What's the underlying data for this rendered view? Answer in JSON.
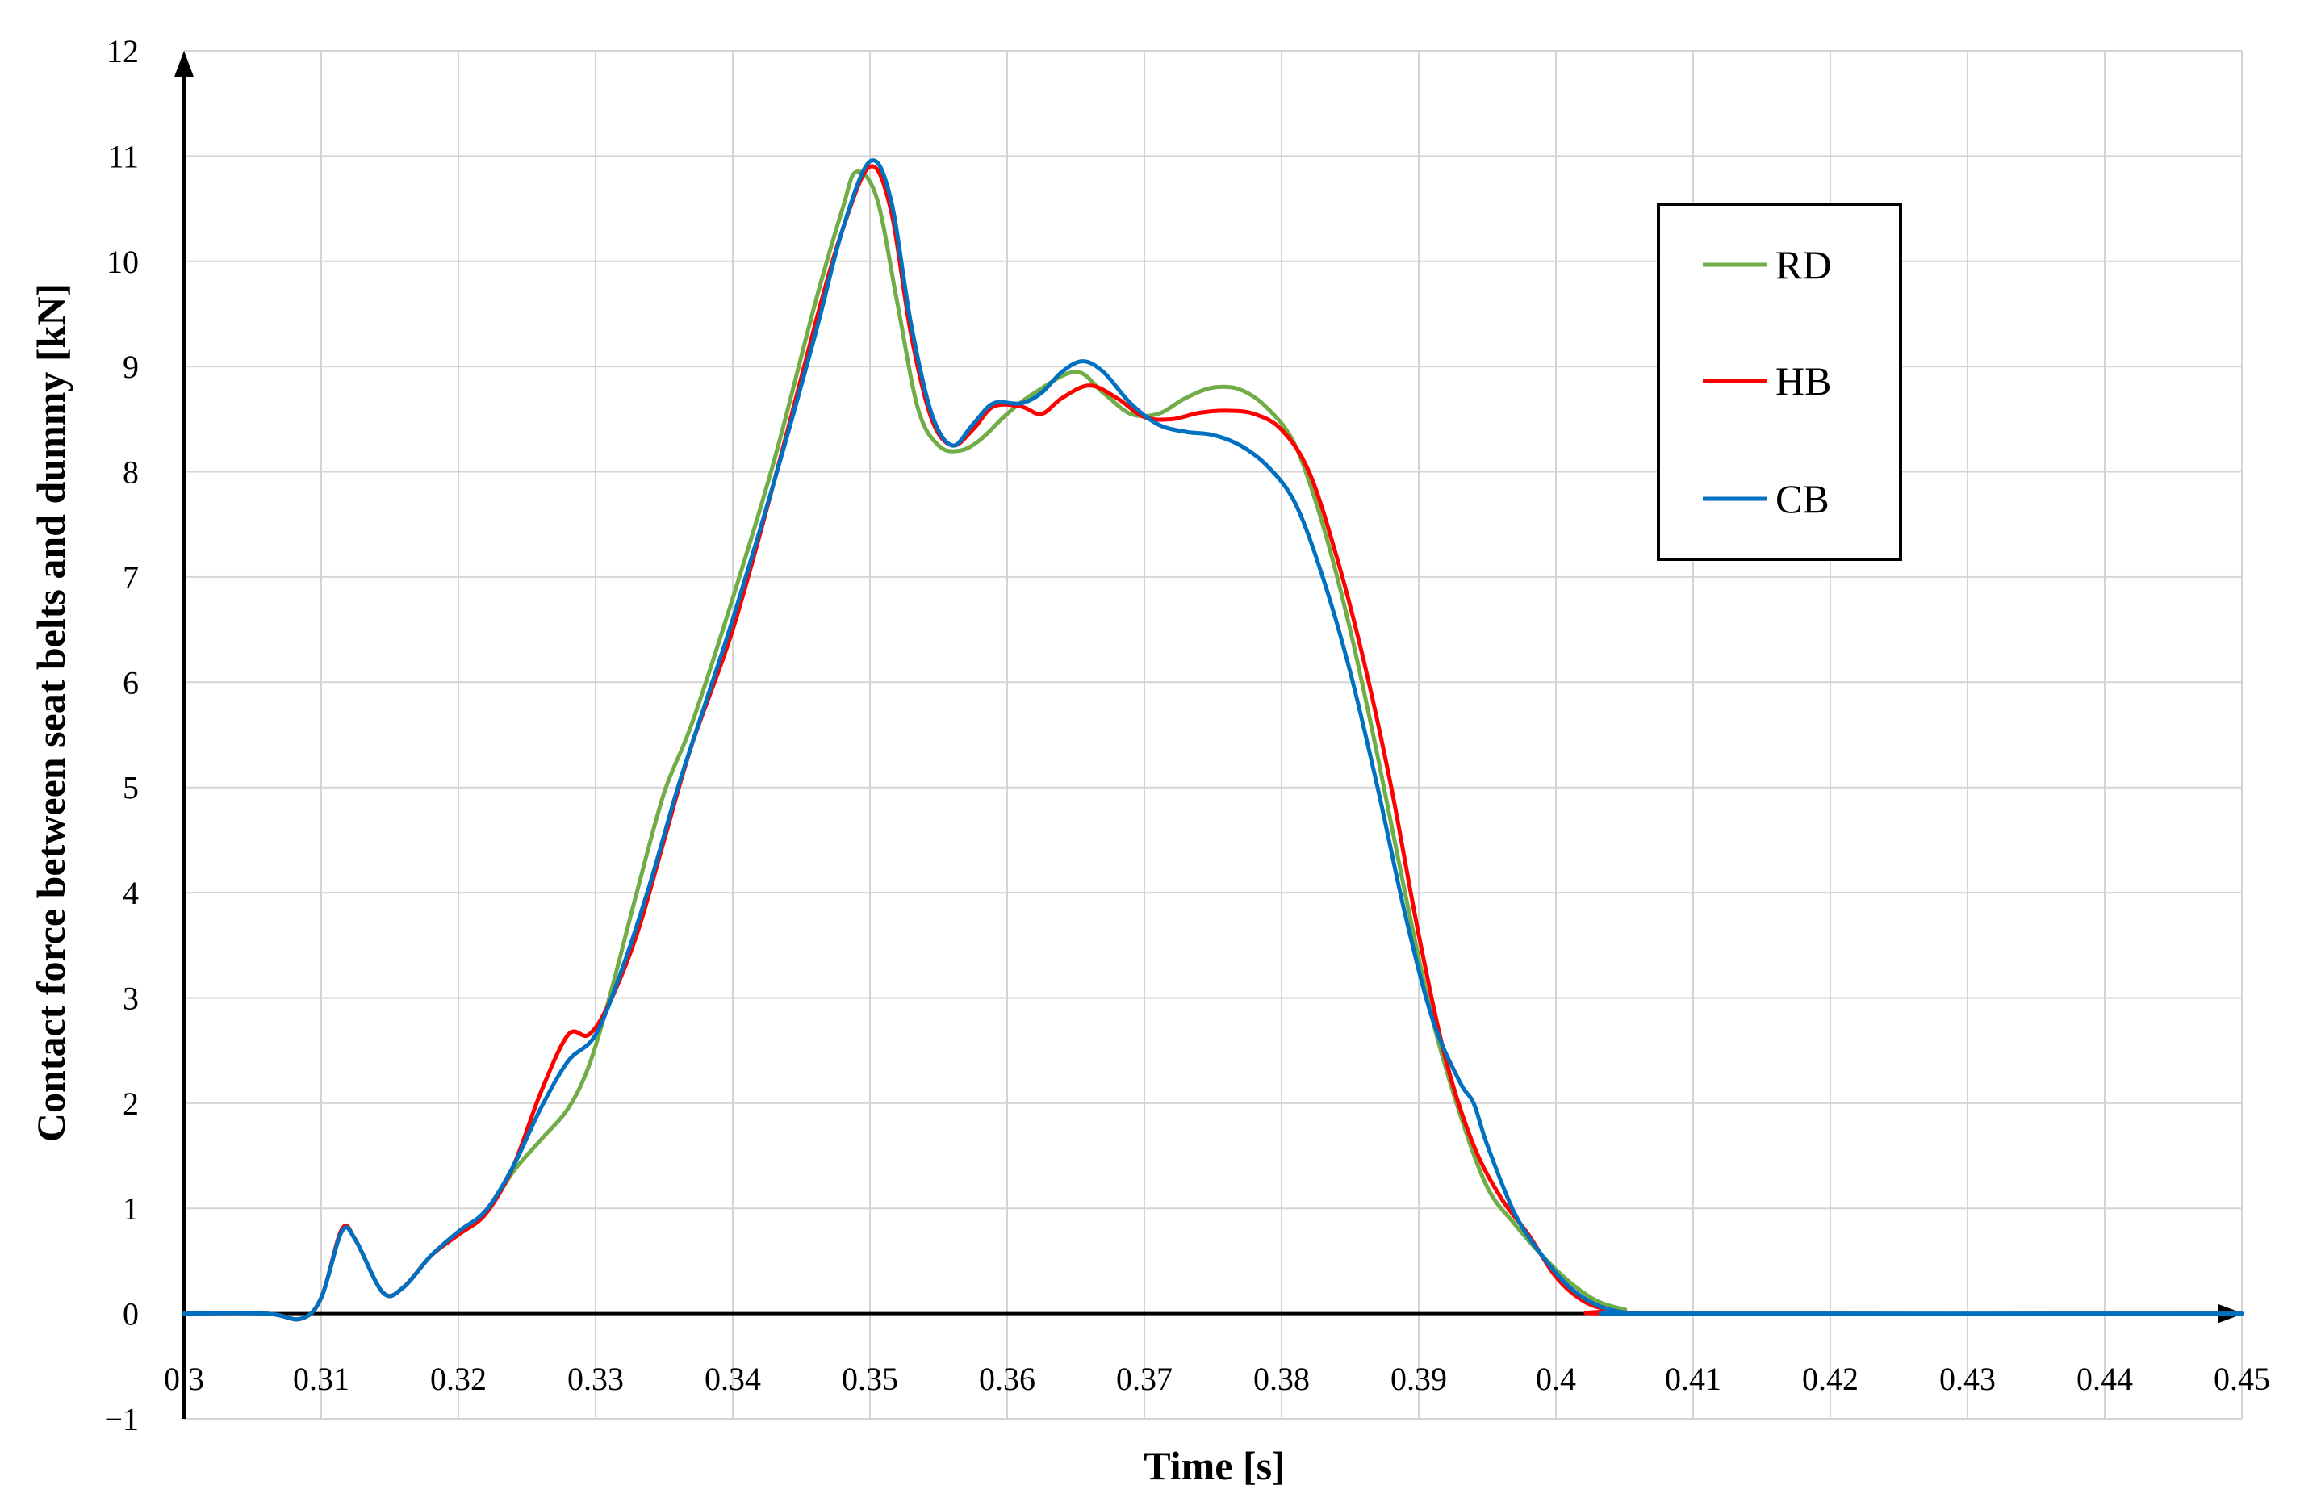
{
  "chart_data": {
    "type": "line",
    "title": "",
    "xlabel": "Time [s]",
    "ylabel": "Contact force between seat belts and dummy [kN]",
    "xlim": [
      0.3,
      0.45
    ],
    "ylim": [
      -1,
      12
    ],
    "x_ticks": [
      0.3,
      0.31,
      0.32,
      0.33,
      0.34,
      0.35,
      0.36,
      0.37,
      0.38,
      0.39,
      0.4,
      0.41,
      0.42,
      0.43,
      0.44,
      0.45
    ],
    "x_tick_labels": [
      "0.3",
      "0.31",
      "0.32",
      "0.33",
      "0.34",
      "0.35",
      "0.36",
      "0.37",
      "0.38",
      "0.39",
      "0.4",
      "0.41",
      "0.42",
      "0.43",
      "0.44",
      "0.45"
    ],
    "y_ticks": [
      -1,
      0,
      1,
      2,
      3,
      4,
      5,
      6,
      7,
      8,
      9,
      10,
      11,
      12
    ],
    "y_tick_labels": [
      "−1",
      "0",
      "1",
      "2",
      "3",
      "4",
      "5",
      "6",
      "7",
      "8",
      "9",
      "10",
      "11",
      "12"
    ],
    "grid": true,
    "legend_position": "top-right",
    "series": [
      {
        "name": "RD",
        "color": "#70ad47",
        "points": [
          [
            0.3,
            0.0
          ],
          [
            0.306,
            0.0
          ],
          [
            0.3085,
            -0.05
          ],
          [
            0.31,
            0.15
          ],
          [
            0.3115,
            0.78
          ],
          [
            0.3125,
            0.7
          ],
          [
            0.3145,
            0.2
          ],
          [
            0.316,
            0.25
          ],
          [
            0.318,
            0.55
          ],
          [
            0.32,
            0.75
          ],
          [
            0.322,
            0.95
          ],
          [
            0.324,
            1.35
          ],
          [
            0.326,
            1.65
          ],
          [
            0.328,
            1.95
          ],
          [
            0.3295,
            2.35
          ],
          [
            0.331,
            3.0
          ],
          [
            0.333,
            4.0
          ],
          [
            0.335,
            4.95
          ],
          [
            0.337,
            5.6
          ],
          [
            0.34,
            6.8
          ],
          [
            0.343,
            8.1
          ],
          [
            0.346,
            9.6
          ],
          [
            0.348,
            10.5
          ],
          [
            0.349,
            10.85
          ],
          [
            0.3505,
            10.6
          ],
          [
            0.352,
            9.6
          ],
          [
            0.3535,
            8.6
          ],
          [
            0.355,
            8.25
          ],
          [
            0.3565,
            8.2
          ],
          [
            0.358,
            8.3
          ],
          [
            0.36,
            8.55
          ],
          [
            0.362,
            8.75
          ],
          [
            0.365,
            8.95
          ],
          [
            0.367,
            8.75
          ],
          [
            0.369,
            8.55
          ],
          [
            0.371,
            8.55
          ],
          [
            0.373,
            8.7
          ],
          [
            0.375,
            8.8
          ],
          [
            0.377,
            8.78
          ],
          [
            0.379,
            8.6
          ],
          [
            0.381,
            8.25
          ],
          [
            0.383,
            7.5
          ],
          [
            0.385,
            6.5
          ],
          [
            0.387,
            5.3
          ],
          [
            0.389,
            4.0
          ],
          [
            0.391,
            2.8
          ],
          [
            0.393,
            1.9
          ],
          [
            0.395,
            1.2
          ],
          [
            0.397,
            0.85
          ],
          [
            0.399,
            0.55
          ],
          [
            0.401,
            0.3
          ],
          [
            0.403,
            0.12
          ],
          [
            0.405,
            0.04
          ],
          [
            0.407,
            0.0
          ],
          [
            0.45,
            0.0
          ]
        ]
      },
      {
        "name": "HB",
        "color": "#ff0000",
        "points": [
          [
            0.3,
            0.0
          ],
          [
            0.306,
            0.0
          ],
          [
            0.3085,
            -0.05
          ],
          [
            0.31,
            0.15
          ],
          [
            0.3115,
            0.8
          ],
          [
            0.3125,
            0.7
          ],
          [
            0.3145,
            0.2
          ],
          [
            0.316,
            0.25
          ],
          [
            0.318,
            0.55
          ],
          [
            0.32,
            0.75
          ],
          [
            0.322,
            0.95
          ],
          [
            0.324,
            1.4
          ],
          [
            0.326,
            2.1
          ],
          [
            0.328,
            2.65
          ],
          [
            0.3295,
            2.65
          ],
          [
            0.331,
            2.95
          ],
          [
            0.333,
            3.6
          ],
          [
            0.335,
            4.5
          ],
          [
            0.337,
            5.4
          ],
          [
            0.34,
            6.5
          ],
          [
            0.343,
            7.9
          ],
          [
            0.346,
            9.4
          ],
          [
            0.348,
            10.3
          ],
          [
            0.35,
            10.9
          ],
          [
            0.3515,
            10.5
          ],
          [
            0.353,
            9.3
          ],
          [
            0.3545,
            8.5
          ],
          [
            0.356,
            8.25
          ],
          [
            0.3575,
            8.4
          ],
          [
            0.359,
            8.62
          ],
          [
            0.361,
            8.62
          ],
          [
            0.3625,
            8.55
          ],
          [
            0.364,
            8.7
          ],
          [
            0.366,
            8.82
          ],
          [
            0.368,
            8.7
          ],
          [
            0.37,
            8.52
          ],
          [
            0.372,
            8.5
          ],
          [
            0.374,
            8.56
          ],
          [
            0.376,
            8.58
          ],
          [
            0.378,
            8.55
          ],
          [
            0.38,
            8.4
          ],
          [
            0.382,
            8.0
          ],
          [
            0.384,
            7.2
          ],
          [
            0.386,
            6.2
          ],
          [
            0.388,
            5.0
          ],
          [
            0.39,
            3.6
          ],
          [
            0.392,
            2.4
          ],
          [
            0.394,
            1.6
          ],
          [
            0.396,
            1.1
          ],
          [
            0.398,
            0.75
          ],
          [
            0.4,
            0.35
          ],
          [
            0.402,
            0.12
          ],
          [
            0.404,
            0.03
          ],
          [
            0.406,
            0.0
          ],
          [
            0.45,
            0.0
          ]
        ]
      },
      {
        "name": "CB",
        "color": "#0070c0",
        "points": [
          [
            0.3,
            0.0
          ],
          [
            0.306,
            0.0
          ],
          [
            0.3085,
            -0.05
          ],
          [
            0.31,
            0.15
          ],
          [
            0.3115,
            0.78
          ],
          [
            0.3125,
            0.7
          ],
          [
            0.3145,
            0.2
          ],
          [
            0.316,
            0.25
          ],
          [
            0.318,
            0.55
          ],
          [
            0.32,
            0.78
          ],
          [
            0.322,
            0.98
          ],
          [
            0.324,
            1.4
          ],
          [
            0.326,
            1.95
          ],
          [
            0.328,
            2.4
          ],
          [
            0.33,
            2.65
          ],
          [
            0.332,
            3.3
          ],
          [
            0.334,
            4.1
          ],
          [
            0.336,
            5.0
          ],
          [
            0.338,
            5.8
          ],
          [
            0.34,
            6.6
          ],
          [
            0.343,
            7.9
          ],
          [
            0.346,
            9.3
          ],
          [
            0.348,
            10.3
          ],
          [
            0.35,
            10.95
          ],
          [
            0.3515,
            10.6
          ],
          [
            0.353,
            9.4
          ],
          [
            0.3545,
            8.55
          ],
          [
            0.356,
            8.25
          ],
          [
            0.3575,
            8.45
          ],
          [
            0.359,
            8.65
          ],
          [
            0.361,
            8.65
          ],
          [
            0.3625,
            8.75
          ],
          [
            0.364,
            8.95
          ],
          [
            0.3655,
            9.05
          ],
          [
            0.367,
            8.95
          ],
          [
            0.369,
            8.65
          ],
          [
            0.371,
            8.45
          ],
          [
            0.373,
            8.38
          ],
          [
            0.375,
            8.35
          ],
          [
            0.377,
            8.25
          ],
          [
            0.379,
            8.05
          ],
          [
            0.381,
            7.7
          ],
          [
            0.383,
            7.0
          ],
          [
            0.385,
            6.1
          ],
          [
            0.387,
            5.0
          ],
          [
            0.389,
            3.8
          ],
          [
            0.391,
            2.8
          ],
          [
            0.393,
            2.2
          ],
          [
            0.394,
            2.0
          ],
          [
            0.395,
            1.6
          ],
          [
            0.397,
            0.95
          ],
          [
            0.399,
            0.55
          ],
          [
            0.401,
            0.25
          ],
          [
            0.403,
            0.08
          ],
          [
            0.405,
            0.01
          ],
          [
            0.407,
            0.0
          ],
          [
            0.45,
            0.0
          ]
        ]
      }
    ]
  }
}
